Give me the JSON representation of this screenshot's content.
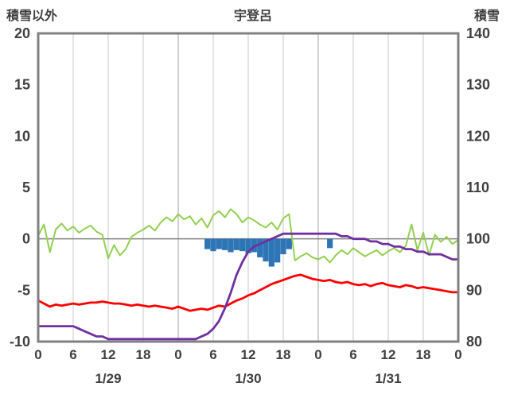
{
  "header": {
    "left_axis_title": "積雪以外",
    "title": "宇登呂",
    "right_axis_title": "積雪"
  },
  "chart_data": {
    "type": "combo",
    "title": "宇登呂",
    "x_hours_span": 72,
    "x_tick_hours": [
      0,
      6,
      12,
      18,
      24,
      30,
      36,
      42,
      48,
      54,
      60,
      66,
      72
    ],
    "x_tick_labels": [
      "0",
      "6",
      "12",
      "18",
      "0",
      "6",
      "12",
      "18",
      "0",
      "6",
      "12",
      "18",
      "0"
    ],
    "day_labels": [
      {
        "label": "1/29",
        "hour": 12
      },
      {
        "label": "1/30",
        "hour": 36
      },
      {
        "label": "1/31",
        "hour": 60
      }
    ],
    "left_axis": {
      "title": "積雪以外",
      "min": -10,
      "max": 20,
      "ticks": [
        20,
        15,
        10,
        5,
        0,
        -5,
        -10
      ]
    },
    "right_axis": {
      "title": "積雪",
      "min": 80,
      "max": 140,
      "ticks": [
        140,
        130,
        120,
        110,
        100,
        90,
        80
      ]
    },
    "grid": "vertical-6h",
    "legend": "none",
    "series": [
      {
        "name": "blue-bars",
        "type": "bar",
        "axis": "left",
        "direction": "down",
        "color": "#2E75B6",
        "values": [
          0,
          0,
          0,
          0,
          0,
          0,
          0,
          0,
          0,
          0,
          0,
          0,
          0,
          0,
          0,
          0,
          0,
          0,
          0,
          0,
          0,
          0,
          0,
          0,
          0,
          0,
          0,
          0,
          0,
          1.0,
          1.2,
          1.0,
          1.1,
          1.3,
          1.1,
          1.2,
          1.4,
          1.3,
          1.8,
          2.2,
          2.7,
          2.3,
          1.5,
          1.0,
          0,
          0,
          0,
          0,
          0,
          0,
          0.9,
          0,
          0,
          0,
          0,
          0,
          0,
          0,
          0,
          0,
          0,
          0,
          0,
          0,
          0,
          0,
          0,
          0,
          0,
          0,
          0,
          0,
          0
        ]
      },
      {
        "name": "green-line",
        "type": "line",
        "axis": "left",
        "color": "#92D050",
        "width": 2,
        "values": [
          0.3,
          1.4,
          -1.3,
          0.9,
          1.5,
          0.8,
          1.2,
          0.6,
          1.0,
          1.3,
          0.7,
          0.4,
          -1.9,
          -0.6,
          -1.6,
          -1.0,
          0.2,
          0.6,
          0.9,
          1.3,
          0.8,
          1.6,
          2.1,
          1.7,
          2.4,
          1.9,
          2.2,
          1.4,
          2.0,
          1.1,
          2.3,
          2.7,
          2.1,
          2.9,
          2.4,
          1.6,
          2.1,
          1.8,
          1.4,
          1.1,
          1.6,
          0.9,
          2.0,
          2.4,
          -2.1,
          -1.7,
          -1.4,
          -1.8,
          -2.0,
          -1.7,
          -2.3,
          -1.6,
          -1.1,
          -1.5,
          -0.9,
          -1.3,
          -1.7,
          -1.4,
          -1.1,
          -1.6,
          -1.2,
          -0.9,
          -1.3,
          -0.7,
          1.4,
          -1.1,
          0.6,
          -1.6,
          0.4,
          -0.3,
          0.2,
          -0.5,
          -0.1
        ]
      },
      {
        "name": "red-line",
        "type": "line",
        "axis": "left",
        "color": "#FF0000",
        "width": 2.8,
        "values": [
          -6.0,
          -6.3,
          -6.6,
          -6.4,
          -6.5,
          -6.4,
          -6.3,
          -6.4,
          -6.3,
          -6.2,
          -6.2,
          -6.1,
          -6.2,
          -6.3,
          -6.3,
          -6.4,
          -6.5,
          -6.4,
          -6.5,
          -6.6,
          -6.5,
          -6.6,
          -6.7,
          -6.8,
          -6.6,
          -6.8,
          -7.0,
          -6.9,
          -6.8,
          -6.9,
          -6.7,
          -6.5,
          -6.6,
          -6.3,
          -6.0,
          -5.8,
          -5.5,
          -5.3,
          -5.0,
          -4.7,
          -4.4,
          -4.2,
          -4.0,
          -3.8,
          -3.6,
          -3.5,
          -3.7,
          -3.9,
          -4.0,
          -4.1,
          -4.0,
          -4.2,
          -4.3,
          -4.2,
          -4.4,
          -4.5,
          -4.4,
          -4.6,
          -4.4,
          -4.3,
          -4.5,
          -4.6,
          -4.7,
          -4.5,
          -4.6,
          -4.8,
          -4.7,
          -4.8,
          -4.9,
          -5.0,
          -5.1,
          -5.2,
          -5.2
        ]
      },
      {
        "name": "purple-line",
        "type": "line",
        "axis": "right",
        "color": "#7030A0",
        "width": 2.8,
        "values": [
          83,
          83,
          83,
          83,
          83,
          83,
          83,
          82.5,
          82,
          81.5,
          81,
          81,
          80.5,
          80.5,
          80.5,
          80.5,
          80.5,
          80.5,
          80.5,
          80.5,
          80.5,
          80.5,
          80.5,
          80.5,
          80.5,
          80.5,
          80.5,
          80.5,
          81,
          81.5,
          82.5,
          84,
          86.5,
          89.5,
          93,
          95.5,
          97.5,
          98.5,
          99,
          99.5,
          100,
          100.5,
          101,
          101,
          101,
          101,
          101,
          101,
          101,
          101,
          101,
          101,
          100.5,
          100.5,
          100,
          100,
          100,
          99.5,
          99.5,
          99,
          99,
          98.5,
          98.5,
          98,
          98,
          97.5,
          97.5,
          97,
          97,
          97,
          96.5,
          96,
          96
        ]
      }
    ],
    "colors": {
      "green": "#92D050",
      "red": "#FF0000",
      "purple": "#7030A0",
      "blue": "#2E75B6",
      "grid": "#C8C8C8",
      "day_grid": "#A0A0A0",
      "frame": "#808080",
      "zero_line": "#808080",
      "text": "#404040"
    }
  }
}
